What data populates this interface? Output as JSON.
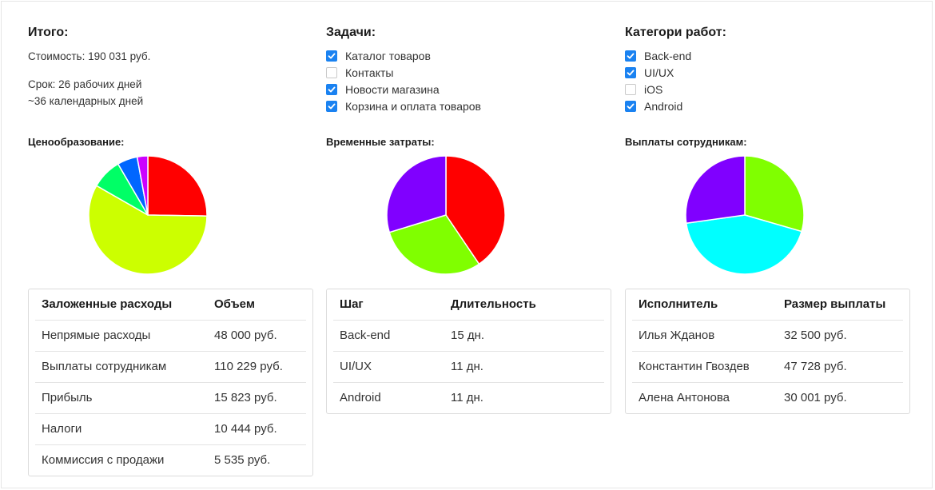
{
  "summary": {
    "title": "Итого:",
    "cost": "Стоимость: 190 031 руб.",
    "term": "Срок: 26 рабочих дней",
    "calendar": "~36 календарных дней"
  },
  "tasks": {
    "title": "Задачи:",
    "items": [
      {
        "label": "Каталог товаров",
        "checked": true
      },
      {
        "label": "Контакты",
        "checked": false
      },
      {
        "label": "Новости магазина",
        "checked": true
      },
      {
        "label": "Корзина и оплата товаров",
        "checked": true
      }
    ]
  },
  "categories": {
    "title": "Категори работ:",
    "items": [
      {
        "label": "Back-end",
        "checked": true
      },
      {
        "label": "UI/UX",
        "checked": true
      },
      {
        "label": "iOS",
        "checked": false
      },
      {
        "label": "Android",
        "checked": true
      }
    ]
  },
  "pricing": {
    "title": "Ценообразование:",
    "table": {
      "headers": [
        "Заложенные расходы",
        "Объем"
      ],
      "rows": [
        [
          "Непрямые расходы",
          "48 000 руб."
        ],
        [
          "Выплаты сотрудникам",
          "110 229 руб."
        ],
        [
          "Прибыль",
          "15 823 руб."
        ],
        [
          "Налоги",
          "10 444 руб."
        ],
        [
          "Коммиссия с продажи",
          "5 535 руб."
        ]
      ]
    }
  },
  "time": {
    "title": "Временные затраты:",
    "table": {
      "headers": [
        "Шаг",
        "Длительность"
      ],
      "rows": [
        [
          "Back-end",
          "15 дн."
        ],
        [
          "UI/UX",
          "11 дн."
        ],
        [
          "Android",
          "11 дн."
        ]
      ]
    }
  },
  "payments": {
    "title": "Выплаты сотрудникам:",
    "table": {
      "headers": [
        "Исполнитель",
        "Размер выплаты"
      ],
      "rows": [
        [
          "Илья Жданов",
          "32 500 руб."
        ],
        [
          "Константин Гвоздев",
          "47 728 руб."
        ],
        [
          "Алена Антонова",
          "30 001 руб."
        ]
      ]
    }
  },
  "chart_data": [
    {
      "type": "pie",
      "title": "Ценообразование:",
      "categories": [
        "Непрямые расходы",
        "Выплаты сотрудникам",
        "Прибыль",
        "Налоги",
        "Коммиссия с продажи"
      ],
      "values": [
        48000,
        110229,
        15823,
        10444,
        5535
      ],
      "colors": [
        "#ff0000",
        "#ccff00",
        "#00ff66",
        "#0066ff",
        "#cc00ff"
      ]
    },
    {
      "type": "pie",
      "title": "Временные затраты:",
      "categories": [
        "Back-end",
        "UI/UX",
        "Android"
      ],
      "values": [
        15,
        11,
        11
      ],
      "colors": [
        "#ff0000",
        "#80ff00",
        "#8000ff"
      ]
    },
    {
      "type": "pie",
      "title": "Выплаты сотрудникам:",
      "categories": [
        "Илья Жданов",
        "Константин Гвоздев",
        "Алена Антонова"
      ],
      "values": [
        32500,
        47728,
        30001
      ],
      "colors": [
        "#80ff00",
        "#00ffff",
        "#8000ff"
      ]
    }
  ]
}
